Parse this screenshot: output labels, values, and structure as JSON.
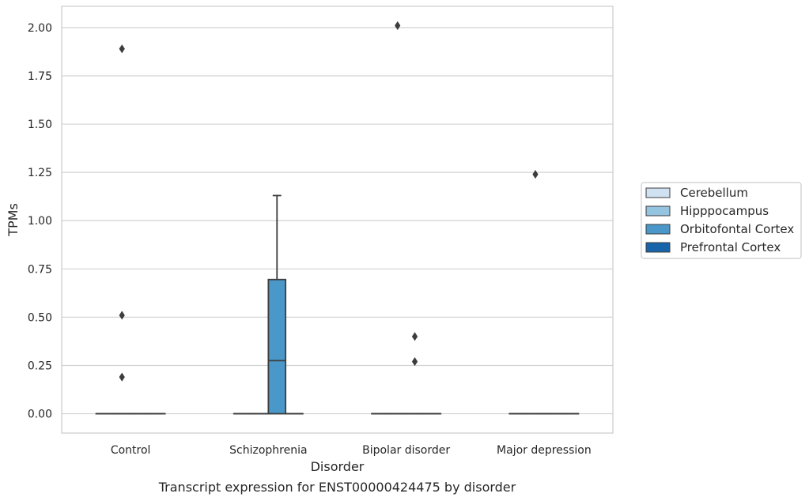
{
  "chart_data": {
    "type": "box",
    "title": "",
    "caption": "Transcript expression for ENST00000424475 by disorder",
    "xlabel": "Disorder",
    "ylabel": "TPMs",
    "ylim": [
      -0.1,
      2.11
    ],
    "yticks": [
      "0.00",
      "0.25",
      "0.50",
      "0.75",
      "1.00",
      "1.25",
      "1.50",
      "1.75",
      "2.00"
    ],
    "ytick_values": [
      0,
      0.25,
      0.5,
      0.75,
      1.0,
      1.25,
      1.5,
      1.75,
      2.0
    ],
    "grid": true,
    "legend_position": "right",
    "categories": [
      "Control",
      "Schizophrenia",
      "Bipolar disorder",
      "Major depression"
    ],
    "series": [
      {
        "name": "Cerebellum",
        "color": "#d0e1f2",
        "boxes": [
          {
            "q1": 0,
            "median": 0,
            "q3": 0,
            "whisker_low": 0,
            "whisker_high": 0,
            "outliers": []
          },
          {
            "q1": 0,
            "median": 0,
            "q3": 0,
            "whisker_low": 0,
            "whisker_high": 0,
            "outliers": []
          },
          {
            "q1": 0,
            "median": 0,
            "q3": 0,
            "whisker_low": 0,
            "whisker_high": 0,
            "outliers": []
          },
          {
            "q1": 0,
            "median": 0,
            "q3": 0,
            "whisker_low": 0,
            "whisker_high": 0,
            "outliers": []
          }
        ]
      },
      {
        "name": "Hipppocampus",
        "color": "#94c4df",
        "boxes": [
          {
            "q1": 0,
            "median": 0,
            "q3": 0,
            "whisker_low": 0,
            "whisker_high": 0,
            "outliers": [
              0.19,
              0.51,
              1.89
            ]
          },
          {
            "q1": 0,
            "median": 0,
            "q3": 0,
            "whisker_low": 0,
            "whisker_high": 0,
            "outliers": []
          },
          {
            "q1": 0,
            "median": 0,
            "q3": 0,
            "whisker_low": 0,
            "whisker_high": 0,
            "outliers": [
              2.01
            ]
          },
          {
            "q1": 0,
            "median": 0,
            "q3": 0,
            "whisker_low": 0,
            "whisker_high": 0,
            "outliers": [
              1.24
            ]
          }
        ]
      },
      {
        "name": "Orbitofontal Cortex",
        "color": "#4a98c9",
        "boxes": [
          {
            "q1": 0,
            "median": 0,
            "q3": 0,
            "whisker_low": 0,
            "whisker_high": 0,
            "outliers": []
          },
          {
            "q1": 0,
            "median": 0.275,
            "q3": 0.695,
            "whisker_low": 0,
            "whisker_high": 1.13,
            "outliers": []
          },
          {
            "q1": 0,
            "median": 0,
            "q3": 0,
            "whisker_low": 0,
            "whisker_high": 0,
            "outliers": [
              0.27,
              0.4
            ]
          },
          {
            "q1": 0,
            "median": 0,
            "q3": 0,
            "whisker_low": 0,
            "whisker_high": 0,
            "outliers": []
          }
        ]
      },
      {
        "name": "Prefrontal Cortex",
        "color": "#1764ab",
        "boxes": [
          {
            "q1": 0,
            "median": 0,
            "q3": 0,
            "whisker_low": 0,
            "whisker_high": 0,
            "outliers": []
          },
          {
            "q1": 0,
            "median": 0,
            "q3": 0,
            "whisker_low": 0,
            "whisker_high": 0,
            "outliers": []
          },
          {
            "q1": 0,
            "median": 0,
            "q3": 0,
            "whisker_low": 0,
            "whisker_high": 0,
            "outliers": []
          },
          {
            "q1": 0,
            "median": 0,
            "q3": 0,
            "whisker_low": 0,
            "whisker_high": 0,
            "outliers": []
          }
        ]
      }
    ]
  }
}
